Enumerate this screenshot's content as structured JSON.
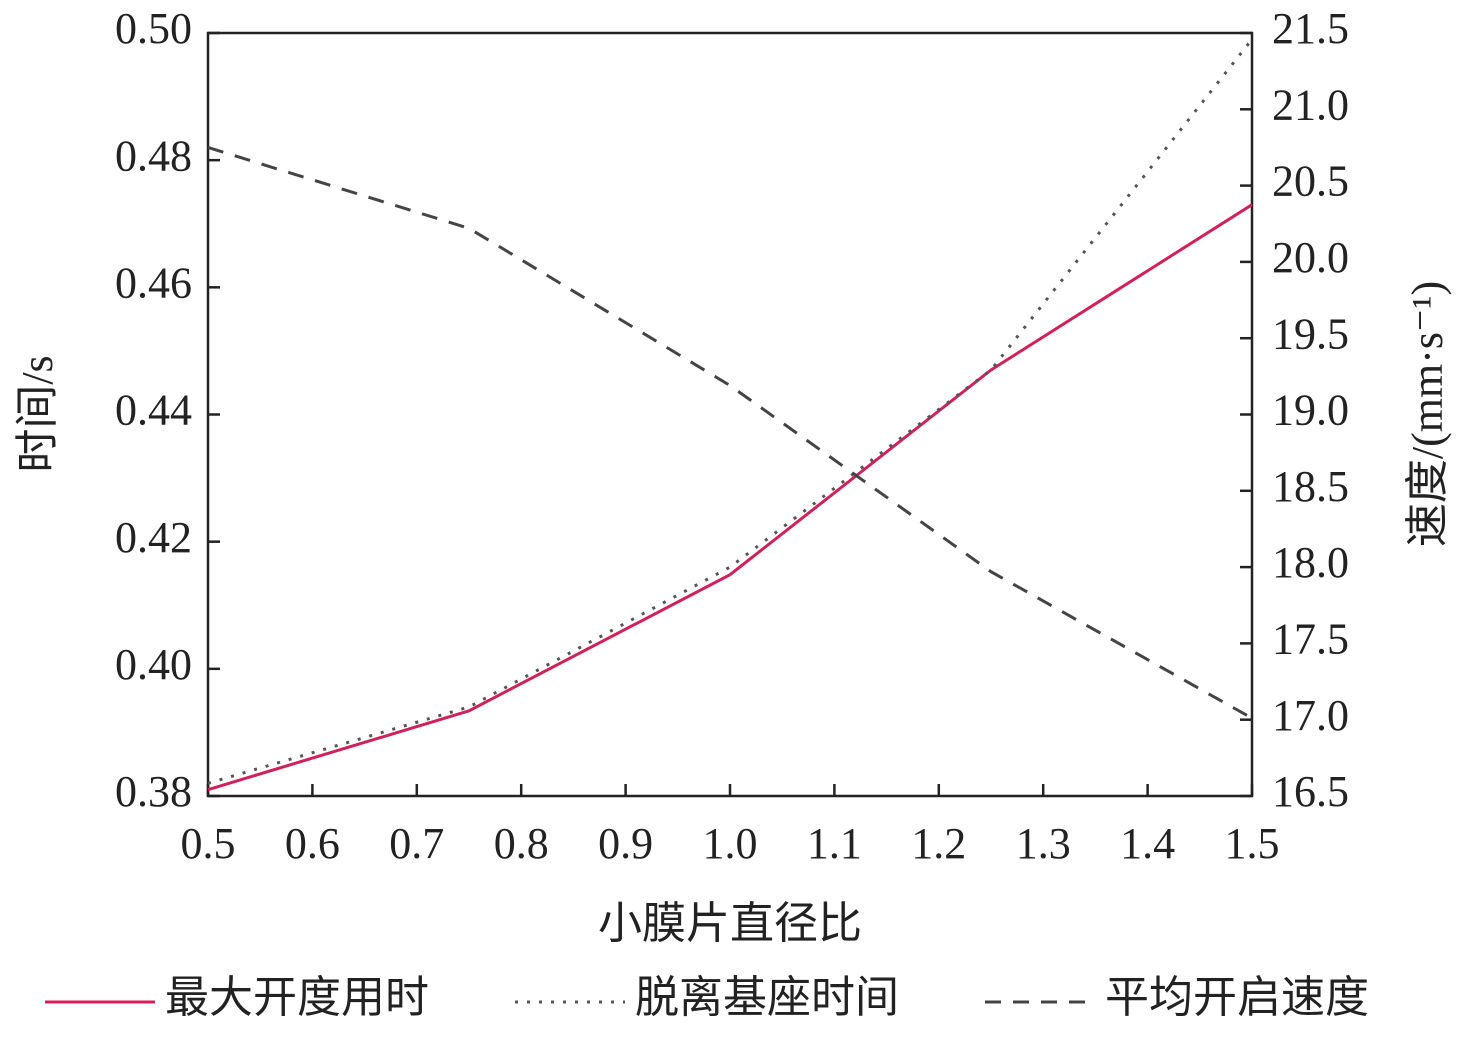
{
  "chart_data": {
    "type": "line",
    "x_label": "小膜片直径比",
    "y_label": "时间/s",
    "y2_label": "速度/(mm·s⁻¹)",
    "x": [
      0.5,
      0.75,
      1.0,
      1.25,
      1.5
    ],
    "series": [
      {
        "name": "最大开度用时",
        "color": "#d0215a",
        "style": "solid",
        "values": [
          0.381,
          0.3934,
          0.4148,
          0.447,
          0.473
        ]
      },
      {
        "name": "脱离基座时间",
        "color": "#555555",
        "style": "dotted",
        "values": [
          0.382,
          0.394,
          0.416,
          0.447,
          0.499
        ]
      },
      {
        "name": "平均开启速度",
        "color": "#444444",
        "style": "dashed",
        "axis": "y2",
        "values": [
          20.75,
          20.22,
          19.19,
          17.97,
          17.01
        ]
      }
    ],
    "xlim": [
      0.5,
      1.5
    ],
    "xticks": [
      0.5,
      0.6,
      0.7,
      0.8,
      0.9,
      {
        "value": 1.0,
        "label": "1.0"
      },
      1.1,
      1.2,
      1.3,
      1.4,
      1.5
    ],
    "ylim": [
      0.38,
      0.5
    ],
    "yticks": [
      0.38,
      {
        "value": 0.4,
        "label": "0.40"
      },
      0.42,
      0.44,
      0.46,
      0.48,
      {
        "value": 0.5,
        "label": "0.50"
      }
    ],
    "y2lim": [
      16.5,
      21.5
    ],
    "y2ticks": [
      16.5,
      {
        "value": 17,
        "label": "17.0"
      },
      17.5,
      {
        "value": 18,
        "label": "18.0"
      },
      18.5,
      {
        "value": 19,
        "label": "19.0"
      },
      19.5,
      {
        "value": 20,
        "label": "20.0"
      },
      20.5,
      {
        "value": 21,
        "label": "21.0"
      },
      21.5
    ]
  }
}
